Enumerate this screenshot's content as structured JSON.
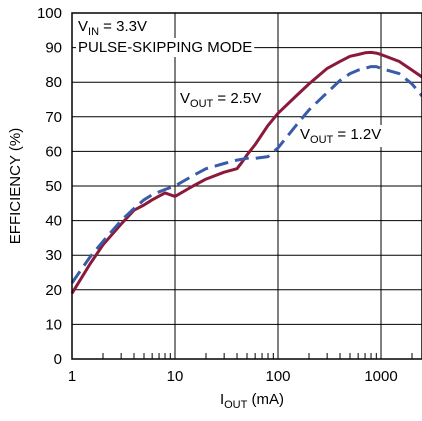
{
  "chart_data": {
    "type": "line",
    "title": "",
    "xlabel": "I",
    "xlabel_sub": "OUT",
    "xlabel_unit": " (mA)",
    "ylabel": "EFFICIENCY (%)",
    "xscale": "log",
    "xlim": [
      1,
      2500
    ],
    "ylim": [
      0,
      100
    ],
    "grid": true,
    "x_ticks": [
      "1",
      "10",
      "100",
      "1000"
    ],
    "y_ticks": [
      "0",
      "10",
      "20",
      "30",
      "40",
      "50",
      "60",
      "70",
      "80",
      "90",
      "100"
    ],
    "condition_1": {
      "main": "V",
      "sub": "IN",
      "rest": " = 3.3V"
    },
    "condition_2": "PULSE-SKIPPING MODE",
    "series": [
      {
        "name": "VOUT = 2.5V",
        "label": {
          "main": "V",
          "sub": "OUT",
          "rest": " = 2.5V"
        },
        "color": "#8b1a3a",
        "dash": "solid",
        "x": [
          1,
          1.5,
          2,
          3,
          4,
          5,
          6,
          8,
          10,
          15,
          20,
          30,
          40,
          45,
          50,
          60,
          80,
          100,
          150,
          200,
          300,
          400,
          500,
          600,
          700,
          800,
          900,
          1000,
          1500,
          2000,
          2500
        ],
        "y": [
          19,
          27.5,
          33,
          39,
          43,
          44.5,
          46,
          48,
          47,
          50,
          52,
          54,
          55,
          57,
          59,
          62,
          67.5,
          71,
          76,
          79.5,
          84,
          86,
          87.5,
          88,
          88.5,
          88.6,
          88.4,
          88,
          86,
          83.5,
          81.5
        ]
      },
      {
        "name": "VOUT = 1.2V",
        "label": {
          "main": "V",
          "sub": "OUT",
          "rest": " = 1.2V"
        },
        "color": "#3a5ca8",
        "dash": "dashed",
        "x": [
          1,
          1.5,
          2,
          3,
          4,
          5,
          6,
          8,
          10,
          15,
          20,
          30,
          40,
          50,
          60,
          80,
          100,
          150,
          200,
          300,
          400,
          500,
          600,
          700,
          800,
          900,
          1000,
          1500,
          2000,
          2500
        ],
        "y": [
          22,
          29.5,
          34,
          40,
          43.5,
          46,
          47.5,
          49,
          50,
          53,
          55,
          56.5,
          57.5,
          58,
          58,
          58.5,
          61,
          67.5,
          72,
          77,
          80.5,
          82.5,
          83.5,
          84,
          84.5,
          84.5,
          84,
          82.5,
          79.5,
          76
        ]
      }
    ]
  }
}
